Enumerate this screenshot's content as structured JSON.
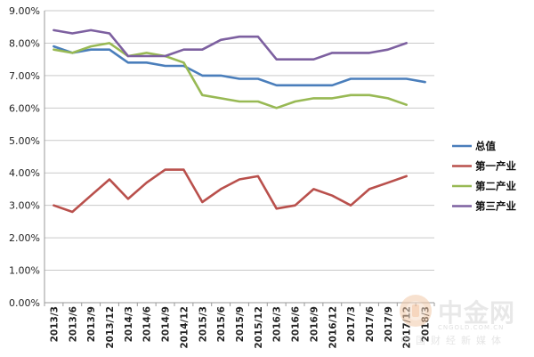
{
  "chart_data": {
    "type": "line",
    "title": "",
    "xlabel": "",
    "ylabel": "",
    "ylim": [
      0,
      9
    ],
    "grid": true,
    "legend_position": "right",
    "y_ticks": [
      "0.00%",
      "1.00%",
      "2.00%",
      "3.00%",
      "4.00%",
      "5.00%",
      "6.00%",
      "7.00%",
      "8.00%",
      "9.00%"
    ],
    "categories": [
      "2013/3",
      "2013/6",
      "2013/9",
      "2013/12",
      "2014/3",
      "2014/6",
      "2014/9",
      "2014/12",
      "2015/3",
      "2015/6",
      "2015/9",
      "2015/12",
      "2016/3",
      "2016/6",
      "2016/9",
      "2016/12",
      "2017/3",
      "2017/6",
      "2017/9",
      "2017/12",
      "2018/3"
    ],
    "series": [
      {
        "name": "总值",
        "color": "#4a7ebb",
        "values": [
          7.9,
          7.7,
          7.8,
          7.8,
          7.4,
          7.4,
          7.3,
          7.3,
          7.0,
          7.0,
          6.9,
          6.9,
          6.7,
          6.7,
          6.7,
          6.7,
          6.9,
          6.9,
          6.9,
          6.9,
          6.8
        ]
      },
      {
        "name": "第一产业",
        "color": "#b9504c",
        "values": [
          3.0,
          2.8,
          3.3,
          3.8,
          3.2,
          3.7,
          4.1,
          4.1,
          3.1,
          3.5,
          3.8,
          3.9,
          2.9,
          3.0,
          3.5,
          3.3,
          3.0,
          3.5,
          3.7,
          3.9,
          null
        ]
      },
      {
        "name": "第二产业",
        "color": "#98b954",
        "values": [
          7.8,
          7.7,
          7.9,
          8.0,
          7.6,
          7.7,
          7.6,
          7.4,
          6.4,
          6.3,
          6.2,
          6.2,
          6.0,
          6.2,
          6.3,
          6.3,
          6.4,
          6.4,
          6.3,
          6.1,
          null
        ]
      },
      {
        "name": "第三产业",
        "color": "#7d60a0",
        "values": [
          8.4,
          8.3,
          8.4,
          8.3,
          7.6,
          7.6,
          7.6,
          7.8,
          7.8,
          8.1,
          8.2,
          8.2,
          7.5,
          7.5,
          7.5,
          7.7,
          7.7,
          7.7,
          7.8,
          8.0,
          null
        ]
      }
    ]
  },
  "watermark": {
    "main": "中金网",
    "domain": "CNGOLD.COM.CN",
    "sub": "中国财经新媒体"
  }
}
